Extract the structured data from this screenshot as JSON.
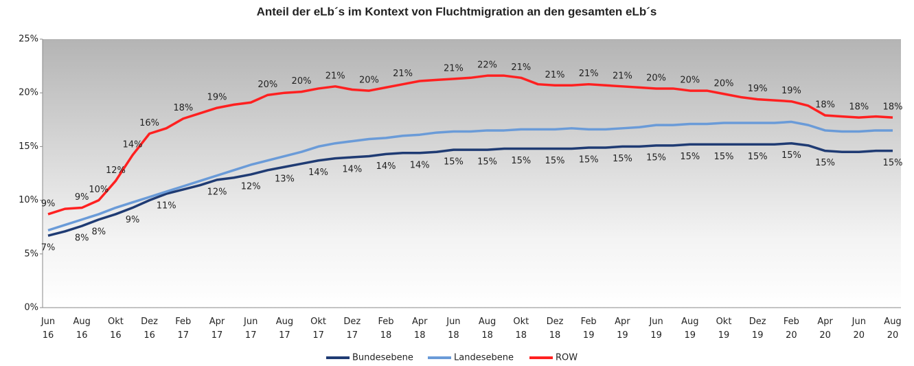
{
  "chart_data": {
    "type": "line",
    "title": "Anteil der eLb´s im Kontext von Fluchtmigration an den gesamten eLb´s",
    "categories": [
      "Jun 16",
      null,
      "Aug 16",
      null,
      "Okt 16",
      null,
      "Dez 16",
      null,
      "Feb 17",
      null,
      "Apr 17",
      null,
      "Jun 17",
      null,
      "Aug 17",
      null,
      "Okt 17",
      null,
      "Dez 17",
      null,
      "Feb 18",
      null,
      "Apr 18",
      null,
      "Jun 18",
      null,
      "Aug 18",
      null,
      "Okt 18",
      null,
      "Dez 18",
      null,
      "Feb 19",
      null,
      "Apr 19",
      null,
      "Jun 19",
      null,
      "Aug 19",
      null,
      "Okt 19",
      null,
      "Dez 19",
      null,
      "Feb 20",
      null,
      "Apr 20",
      null,
      "Jun 20",
      null,
      "Aug 20"
    ],
    "ylim": [
      0,
      25
    ],
    "yticks": [
      {
        "value": 0,
        "label": "0%"
      },
      {
        "value": 5,
        "label": "5%"
      },
      {
        "value": 10,
        "label": "10%"
      },
      {
        "value": 15,
        "label": "15%"
      },
      {
        "value": 20,
        "label": "20%"
      },
      {
        "value": 25,
        "label": "25%"
      }
    ],
    "grid": false,
    "legend": "bottom",
    "series": [
      {
        "name": "Bundesebene",
        "color": "#1f3b73",
        "label_side": "below",
        "values": [
          6.7,
          7.1,
          7.6,
          8.2,
          8.7,
          9.3,
          10.0,
          10.6,
          11.0,
          11.4,
          11.9,
          12.1,
          12.4,
          12.8,
          13.1,
          13.4,
          13.7,
          13.9,
          14.0,
          14.1,
          14.3,
          14.4,
          14.4,
          14.5,
          14.7,
          14.7,
          14.7,
          14.8,
          14.8,
          14.8,
          14.8,
          14.8,
          14.9,
          14.9,
          15.0,
          15.0,
          15.1,
          15.1,
          15.2,
          15.2,
          15.2,
          15.2,
          15.2,
          15.2,
          15.3,
          15.1,
          14.6,
          14.5,
          14.5,
          14.6,
          14.6
        ],
        "value_labels": [
          "7%",
          null,
          "8%",
          "8%",
          null,
          "9%",
          null,
          "11%",
          null,
          null,
          "12%",
          null,
          "12%",
          null,
          "13%",
          null,
          "14%",
          null,
          "14%",
          null,
          "14%",
          null,
          "14%",
          null,
          "15%",
          null,
          "15%",
          null,
          "15%",
          null,
          "15%",
          null,
          "15%",
          null,
          "15%",
          null,
          "15%",
          null,
          "15%",
          null,
          "15%",
          null,
          "15%",
          null,
          "15%",
          null,
          "15%",
          null,
          null,
          null,
          "15%"
        ]
      },
      {
        "name": "Landesebene",
        "color": "#6a9bd8",
        "values": [
          7.2,
          7.7,
          8.2,
          8.7,
          9.3,
          9.8,
          10.3,
          10.8,
          11.3,
          11.8,
          12.3,
          12.8,
          13.3,
          13.7,
          14.1,
          14.5,
          15.0,
          15.3,
          15.5,
          15.7,
          15.8,
          16.0,
          16.1,
          16.3,
          16.4,
          16.4,
          16.5,
          16.5,
          16.6,
          16.6,
          16.6,
          16.7,
          16.6,
          16.6,
          16.7,
          16.8,
          17.0,
          17.0,
          17.1,
          17.1,
          17.2,
          17.2,
          17.2,
          17.2,
          17.3,
          17.0,
          16.5,
          16.4,
          16.4,
          16.5,
          16.5
        ]
      },
      {
        "name": "ROW",
        "color": "#ff2020",
        "label_side": "above",
        "values": [
          8.7,
          9.2,
          9.3,
          10.0,
          11.8,
          14.2,
          16.2,
          16.7,
          17.6,
          18.1,
          18.6,
          18.9,
          19.1,
          19.8,
          20.0,
          20.1,
          20.4,
          20.6,
          20.3,
          20.2,
          20.5,
          20.8,
          21.1,
          21.2,
          21.3,
          21.4,
          21.6,
          21.6,
          21.4,
          20.8,
          20.7,
          20.7,
          20.8,
          20.7,
          20.6,
          20.5,
          20.4,
          20.4,
          20.2,
          20.2,
          19.9,
          19.6,
          19.4,
          19.3,
          19.2,
          18.8,
          17.9,
          17.8,
          17.7,
          17.8,
          17.7
        ],
        "value_labels": [
          "9%",
          null,
          "9%",
          "10%",
          "12%",
          "14%",
          "16%",
          null,
          "18%",
          null,
          "19%",
          null,
          null,
          "20%",
          null,
          "20%",
          null,
          "21%",
          null,
          "20%",
          null,
          "21%",
          null,
          null,
          "21%",
          null,
          "22%",
          null,
          "21%",
          null,
          "21%",
          null,
          "21%",
          null,
          "21%",
          null,
          "20%",
          null,
          "20%",
          null,
          "20%",
          null,
          "19%",
          null,
          "19%",
          null,
          "18%",
          null,
          "18%",
          null,
          "18%"
        ]
      }
    ]
  }
}
